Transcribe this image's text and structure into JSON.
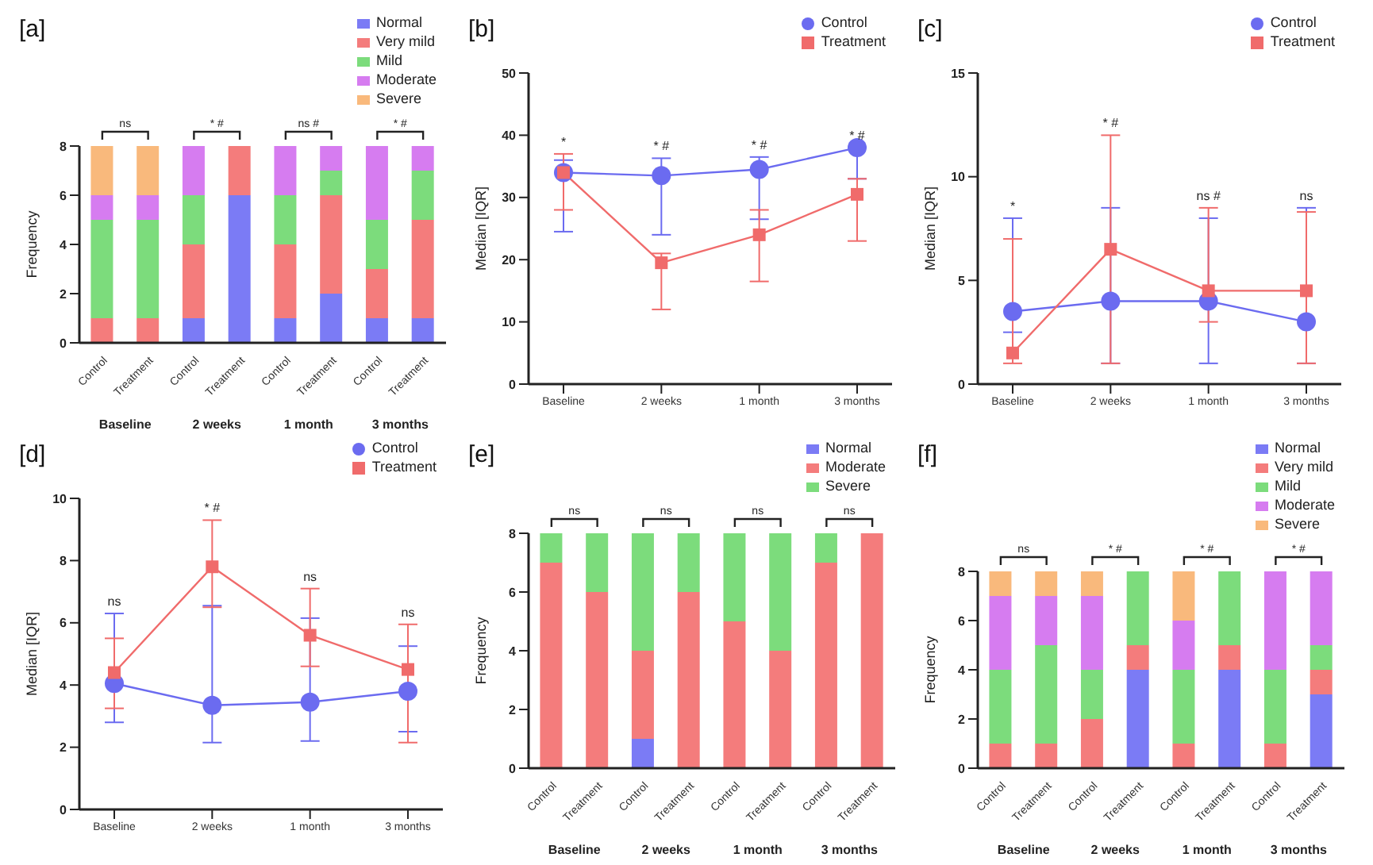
{
  "chart_data": [
    {
      "type": "bar",
      "title": "[a]",
      "ylabel": "Frequency",
      "stacked": true,
      "legend": "top right",
      "ylim": [
        0,
        8
      ],
      "yticks": [
        0,
        2,
        4,
        6,
        8
      ],
      "categories": [
        "Control",
        "Treatment",
        "Control",
        "Treatment",
        "Control",
        "Treatment",
        "Control",
        "Treatment"
      ],
      "annotations": [
        "ns",
        "* #",
        "ns #",
        "* #",
        "Baseline",
        "2 weeks",
        "1 month",
        "3 months"
      ],
      "series": [
        {
          "name": "Normal",
          "color": "#7b7bf5",
          "values": [
            0,
            0,
            1,
            6,
            1,
            2,
            1,
            1
          ]
        },
        {
          "name": "Very mild",
          "color": "#f47c7c",
          "values": [
            1,
            1,
            3,
            2,
            3,
            4,
            2,
            4
          ]
        },
        {
          "name": "Mild",
          "color": "#7cdc7c",
          "values": [
            4,
            4,
            2,
            0,
            2,
            1,
            2,
            2
          ]
        },
        {
          "name": "Moderate",
          "color": "#d67cf0",
          "values": [
            1,
            1,
            2,
            0,
            2,
            1,
            3,
            1
          ]
        },
        {
          "name": "Severe",
          "color": "#f9b97c",
          "values": [
            2,
            2,
            0,
            0,
            0,
            0,
            0,
            0
          ]
        }
      ]
    },
    {
      "type": "line",
      "title": "[b]",
      "ylabel": "Median [IQR]",
      "legend": "top right",
      "ylim": [
        0,
        50
      ],
      "yticks": [
        0,
        10,
        20,
        30,
        40,
        50
      ],
      "categories": [
        "Baseline",
        "2 weeks",
        "1 month",
        "3 months"
      ],
      "annotations": [
        "*",
        "* #",
        "* #",
        "* #"
      ],
      "series": [
        {
          "name": "Control",
          "color": "#6b6bf0",
          "marker": "circle",
          "values": [
            34,
            33.5,
            34.5,
            38
          ],
          "errors": [
            [
              24.5,
              36
            ],
            [
              24,
              36.3
            ],
            [
              26.5,
              36.5
            ],
            [
              33,
              38
            ]
          ]
        },
        {
          "name": "Treatment",
          "color": "#f06b6b",
          "marker": "square",
          "values": [
            34,
            19.5,
            24,
            30.5
          ],
          "errors": [
            [
              28,
              37
            ],
            [
              12,
              21
            ],
            [
              16.5,
              28
            ],
            [
              23,
              33
            ]
          ]
        }
      ]
    },
    {
      "type": "line",
      "title": "[c]",
      "ylabel": "Median [IQR]",
      "legend": "top right",
      "ylim": [
        0,
        15
      ],
      "yticks": [
        0,
        5,
        10,
        15
      ],
      "categories": [
        "Baseline",
        "2 weeks",
        "1 month",
        "3 months"
      ],
      "annotations": [
        "*",
        "* #",
        "ns #",
        "ns"
      ],
      "series": [
        {
          "name": "Control",
          "color": "#6b6bf0",
          "marker": "circle",
          "values": [
            3.5,
            4,
            4,
            3
          ],
          "errors": [
            [
              2.5,
              8
            ],
            [
              1,
              8.5
            ],
            [
              1,
              8
            ],
            [
              1,
              8.5
            ]
          ]
        },
        {
          "name": "Treatment",
          "color": "#f06b6b",
          "marker": "square",
          "values": [
            1.5,
            6.5,
            4.5,
            4.5
          ],
          "errors": [
            [
              1,
              7
            ],
            [
              1,
              12
            ],
            [
              3,
              8.5
            ],
            [
              1,
              8.3
            ]
          ]
        }
      ]
    },
    {
      "type": "line",
      "title": "[d]",
      "ylabel": "Median [IQR]",
      "legend": "top right",
      "ylim": [
        0,
        10
      ],
      "yticks": [
        0,
        2,
        4,
        6,
        8,
        10
      ],
      "categories": [
        "Baseline",
        "2 weeks",
        "1 month",
        "3 months"
      ],
      "annotations": [
        "ns",
        "* #",
        "ns",
        "ns"
      ],
      "series": [
        {
          "name": "Control",
          "color": "#6b6bf0",
          "marker": "circle",
          "values": [
            4.05,
            3.35,
            3.45,
            3.8
          ],
          "errors": [
            [
              2.8,
              6.3
            ],
            [
              2.15,
              6.55
            ],
            [
              2.2,
              6.15
            ],
            [
              2.5,
              5.25
            ]
          ]
        },
        {
          "name": "Treatment",
          "color": "#f06b6b",
          "marker": "square",
          "values": [
            4.4,
            7.8,
            5.6,
            4.5
          ],
          "errors": [
            [
              3.25,
              5.5
            ],
            [
              6.5,
              9.3
            ],
            [
              4.6,
              7.1
            ],
            [
              2.15,
              5.95
            ]
          ]
        }
      ]
    },
    {
      "type": "bar",
      "title": "[e]",
      "ylabel": "Frequency",
      "stacked": true,
      "legend": "top right",
      "ylim": [
        0,
        8
      ],
      "yticks": [
        0,
        2,
        4,
        6,
        8
      ],
      "categories": [
        "Control",
        "Treatment",
        "Control",
        "Treatment",
        "Control",
        "Treatment",
        "Control",
        "Treatment"
      ],
      "annotations": [
        "ns",
        "ns",
        "ns",
        "ns",
        "Baseline",
        "2 weeks",
        "1 month",
        "3 months"
      ],
      "series": [
        {
          "name": "Normal",
          "color": "#7b7bf5",
          "values": [
            0,
            0,
            1,
            0,
            0,
            0,
            0,
            0
          ]
        },
        {
          "name": "Moderate",
          "color": "#f47c7c",
          "values": [
            7,
            6,
            3,
            6,
            5,
            4,
            7,
            8
          ]
        },
        {
          "name": "Severe",
          "color": "#7cdc7c",
          "values": [
            1,
            2,
            4,
            2,
            3,
            4,
            1,
            0
          ]
        }
      ]
    },
    {
      "type": "bar",
      "title": "[f]",
      "ylabel": "Frequency",
      "stacked": true,
      "legend": "top right",
      "ylim": [
        0,
        8
      ],
      "yticks": [
        0,
        2,
        4,
        6,
        8
      ],
      "categories": [
        "Control",
        "Treatment",
        "Control",
        "Treatment",
        "Control",
        "Treatment",
        "Control",
        "Treatment"
      ],
      "annotations": [
        "ns",
        "* #",
        "* #",
        "* #",
        "Baseline",
        "2 weeks",
        "1 month",
        "3 months"
      ],
      "series": [
        {
          "name": "Normal",
          "color": "#7b7bf5",
          "values": [
            0,
            0,
            0,
            4,
            0,
            4,
            0,
            3
          ]
        },
        {
          "name": "Very mild",
          "color": "#f47c7c",
          "values": [
            1,
            1,
            2,
            1,
            1,
            1,
            1,
            1
          ]
        },
        {
          "name": "Mild",
          "color": "#7cdc7c",
          "values": [
            3,
            4,
            2,
            3,
            3,
            3,
            3,
            1
          ]
        },
        {
          "name": "Moderate",
          "color": "#d67cf0",
          "values": [
            3,
            2,
            3,
            0,
            2,
            0,
            4,
            3
          ]
        },
        {
          "name": "Severe",
          "color": "#f9b97c",
          "values": [
            1,
            1,
            1,
            0,
            2,
            0,
            0,
            0
          ]
        }
      ]
    }
  ]
}
